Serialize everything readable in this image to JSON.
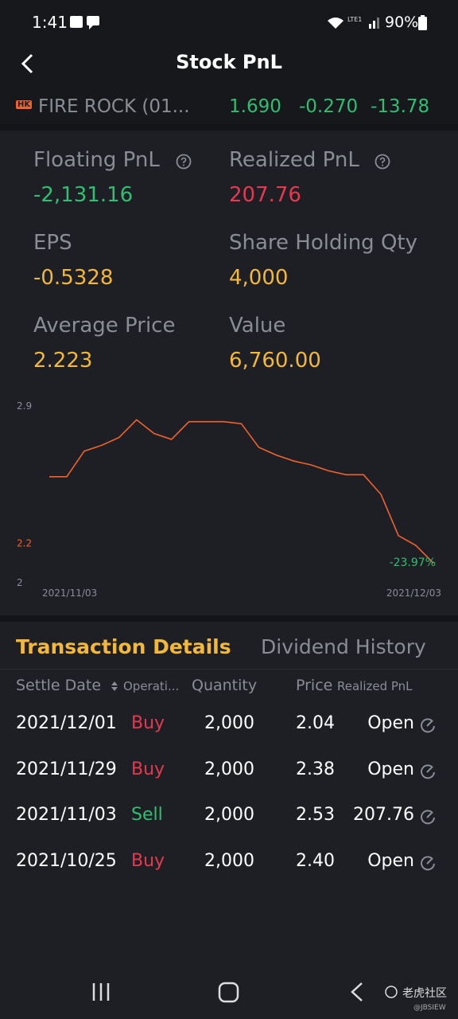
{
  "status_bar": {
    "time": "1:41",
    "network": "LTE1",
    "battery": "90%"
  },
  "header": {
    "title": "Stock PnL"
  },
  "stock": {
    "market": "HK",
    "name": "FIRE ROCK (01...",
    "price": "1.690",
    "change": "-0.270",
    "change_pct": "-13.78"
  },
  "metrics": [
    {
      "label": "Floating PnL",
      "value": "-2,131.16",
      "color": "#2fbf71",
      "help": true
    },
    {
      "label": "Realized PnL",
      "value": "207.76",
      "color": "#e8384f",
      "help": true
    },
    {
      "label": "EPS",
      "value": "-0.5328",
      "color": "#f2b83a",
      "help": false
    },
    {
      "label": "Share Holding Qty",
      "value": "4,000",
      "color": "#f2b83a",
      "help": false
    },
    {
      "label": "Average Price",
      "value": "2.223",
      "color": "#f2b83a",
      "help": false
    },
    {
      "label": "Value",
      "value": "6,760.00",
      "color": "#f2b83a",
      "help": false
    }
  ],
  "chart_data": {
    "type": "line",
    "x": [
      "2021/11/03",
      null,
      null,
      null,
      null,
      null,
      null,
      null,
      null,
      null,
      null,
      null,
      null,
      null,
      null,
      null,
      null,
      null,
      null,
      null,
      null,
      null,
      "2021/12/03"
    ],
    "series": [
      {
        "color": "#f0622d",
        "values": [
          2.54,
          2.54,
          2.67,
          2.7,
          2.74,
          2.83,
          2.76,
          2.73,
          2.82,
          2.82,
          2.82,
          2.81,
          2.69,
          2.65,
          2.62,
          2.6,
          2.57,
          2.55,
          2.55,
          2.45,
          2.24,
          2.19,
          2.1
        ]
      }
    ],
    "ylim": [
      2.0,
      2.9
    ],
    "yticks": [
      2.0,
      2.2,
      2.9
    ],
    "ytick_colors": [
      "#8a8d96",
      "#f0622d",
      "#8a8d96"
    ],
    "annotation": {
      "text": "-23.97%",
      "color": "#2fbf71"
    }
  },
  "tabs": [
    {
      "label": "Transaction Details",
      "active": true
    },
    {
      "label": "Dividend History",
      "active": false
    }
  ],
  "table": {
    "columns": [
      "Settle Date",
      "Operati...",
      "Quantity",
      "Price",
      "Realized PnL"
    ],
    "rows": [
      {
        "cells": [
          "2021/12/01",
          "Buy",
          "2,000",
          "2.04",
          "Open"
        ],
        "op_color": "#e8384f"
      },
      {
        "cells": [
          "2021/11/29",
          "Buy",
          "2,000",
          "2.38",
          "Open"
        ],
        "op_color": "#e8384f"
      },
      {
        "cells": [
          "2021/11/03",
          "Sell",
          "2,000",
          "2.53",
          "207.76"
        ],
        "op_color": "#2fbf71"
      },
      {
        "cells": [
          "2021/10/25",
          "Buy",
          "2,000",
          "2.40",
          "Open"
        ],
        "op_color": "#e8384f"
      }
    ]
  },
  "watermark": {
    "brand": "老虎社区",
    "user": "@JBSIEW"
  }
}
